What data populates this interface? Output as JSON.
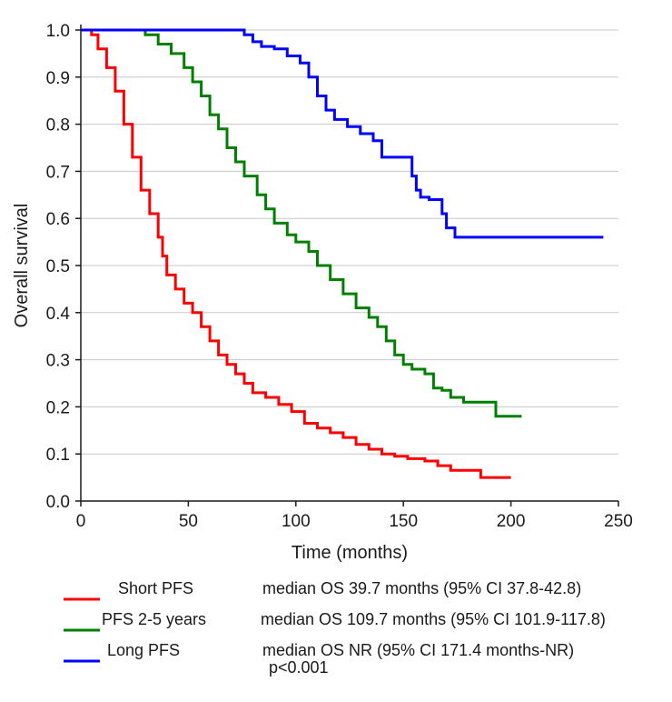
{
  "chart_data": {
    "type": "line",
    "subtype": "kaplan-meier step",
    "xlabel": "Time (months)",
    "ylabel": "Overall survival",
    "xlim": [
      0,
      250
    ],
    "ylim": [
      0,
      1.0
    ],
    "x_ticks": [
      0,
      50,
      100,
      150,
      200,
      250
    ],
    "y_ticks": [
      0.0,
      0.1,
      0.2,
      0.3,
      0.4,
      0.5,
      0.6,
      0.7,
      0.8,
      0.9,
      1.0
    ],
    "x_tick_labels": [
      "0",
      "50",
      "100",
      "150",
      "200",
      "250"
    ],
    "y_tick_labels": [
      "0.0",
      "0.1",
      "0.2",
      "0.3",
      "0.4",
      "0.5",
      "0.6",
      "0.7",
      "0.8",
      "0.9",
      "1.0"
    ],
    "grid": "horizontal",
    "series": [
      {
        "name": "Short PFS",
        "color": "#ff0000",
        "median_text": "median OS 39.7 months (95% CI 37.8-42.8)",
        "points": [
          [
            0,
            1.0
          ],
          [
            3,
            1.0
          ],
          [
            5,
            0.99
          ],
          [
            8,
            0.96
          ],
          [
            12,
            0.92
          ],
          [
            16,
            0.87
          ],
          [
            20,
            0.8
          ],
          [
            24,
            0.73
          ],
          [
            28,
            0.66
          ],
          [
            32,
            0.61
          ],
          [
            36,
            0.56
          ],
          [
            38,
            0.52
          ],
          [
            40,
            0.48
          ],
          [
            44,
            0.45
          ],
          [
            48,
            0.42
          ],
          [
            52,
            0.4
          ],
          [
            56,
            0.37
          ],
          [
            60,
            0.34
          ],
          [
            64,
            0.31
          ],
          [
            68,
            0.29
          ],
          [
            72,
            0.27
          ],
          [
            76,
            0.25
          ],
          [
            80,
            0.23
          ],
          [
            86,
            0.22
          ],
          [
            92,
            0.205
          ],
          [
            98,
            0.19
          ],
          [
            104,
            0.165
          ],
          [
            110,
            0.155
          ],
          [
            116,
            0.145
          ],
          [
            122,
            0.135
          ],
          [
            128,
            0.12
          ],
          [
            134,
            0.11
          ],
          [
            140,
            0.1
          ],
          [
            146,
            0.095
          ],
          [
            152,
            0.09
          ],
          [
            160,
            0.085
          ],
          [
            166,
            0.075
          ],
          [
            172,
            0.065
          ],
          [
            180,
            0.065
          ],
          [
            186,
            0.05
          ],
          [
            200,
            0.05
          ]
        ]
      },
      {
        "name": "PFS 2-5 years",
        "color": "#008000",
        "median_text": "median OS 109.7 months (95% CI 101.9-117.8)",
        "points": [
          [
            0,
            1.0
          ],
          [
            26,
            1.0
          ],
          [
            30,
            0.99
          ],
          [
            36,
            0.97
          ],
          [
            42,
            0.95
          ],
          [
            48,
            0.92
          ],
          [
            52,
            0.89
          ],
          [
            56,
            0.86
          ],
          [
            60,
            0.82
          ],
          [
            64,
            0.79
          ],
          [
            68,
            0.75
          ],
          [
            72,
            0.72
          ],
          [
            76,
            0.69
          ],
          [
            82,
            0.65
          ],
          [
            86,
            0.62
          ],
          [
            90,
            0.59
          ],
          [
            96,
            0.565
          ],
          [
            100,
            0.55
          ],
          [
            106,
            0.53
          ],
          [
            110,
            0.5
          ],
          [
            116,
            0.47
          ],
          [
            122,
            0.44
          ],
          [
            128,
            0.41
          ],
          [
            134,
            0.39
          ],
          [
            138,
            0.37
          ],
          [
            142,
            0.34
          ],
          [
            146,
            0.31
          ],
          [
            150,
            0.29
          ],
          [
            154,
            0.28
          ],
          [
            160,
            0.27
          ],
          [
            164,
            0.24
          ],
          [
            168,
            0.235
          ],
          [
            172,
            0.22
          ],
          [
            178,
            0.21
          ],
          [
            186,
            0.21
          ],
          [
            193,
            0.18
          ],
          [
            205,
            0.18
          ]
        ]
      },
      {
        "name": "Long PFS",
        "color": "#0000ff",
        "median_text": "median OS NR (95% CI 171.4 months-NR)",
        "points": [
          [
            0,
            1.0
          ],
          [
            72,
            1.0
          ],
          [
            76,
            0.99
          ],
          [
            80,
            0.975
          ],
          [
            84,
            0.965
          ],
          [
            90,
            0.96
          ],
          [
            96,
            0.945
          ],
          [
            102,
            0.93
          ],
          [
            106,
            0.9
          ],
          [
            110,
            0.86
          ],
          [
            114,
            0.83
          ],
          [
            118,
            0.81
          ],
          [
            124,
            0.795
          ],
          [
            130,
            0.78
          ],
          [
            136,
            0.765
          ],
          [
            140,
            0.73
          ],
          [
            150,
            0.73
          ],
          [
            154,
            0.69
          ],
          [
            156,
            0.66
          ],
          [
            158,
            0.645
          ],
          [
            162,
            0.64
          ],
          [
            166,
            0.64
          ],
          [
            168,
            0.61
          ],
          [
            170,
            0.58
          ],
          [
            174,
            0.56
          ],
          [
            243,
            0.56
          ]
        ]
      }
    ],
    "annotation": "p<0.001"
  }
}
